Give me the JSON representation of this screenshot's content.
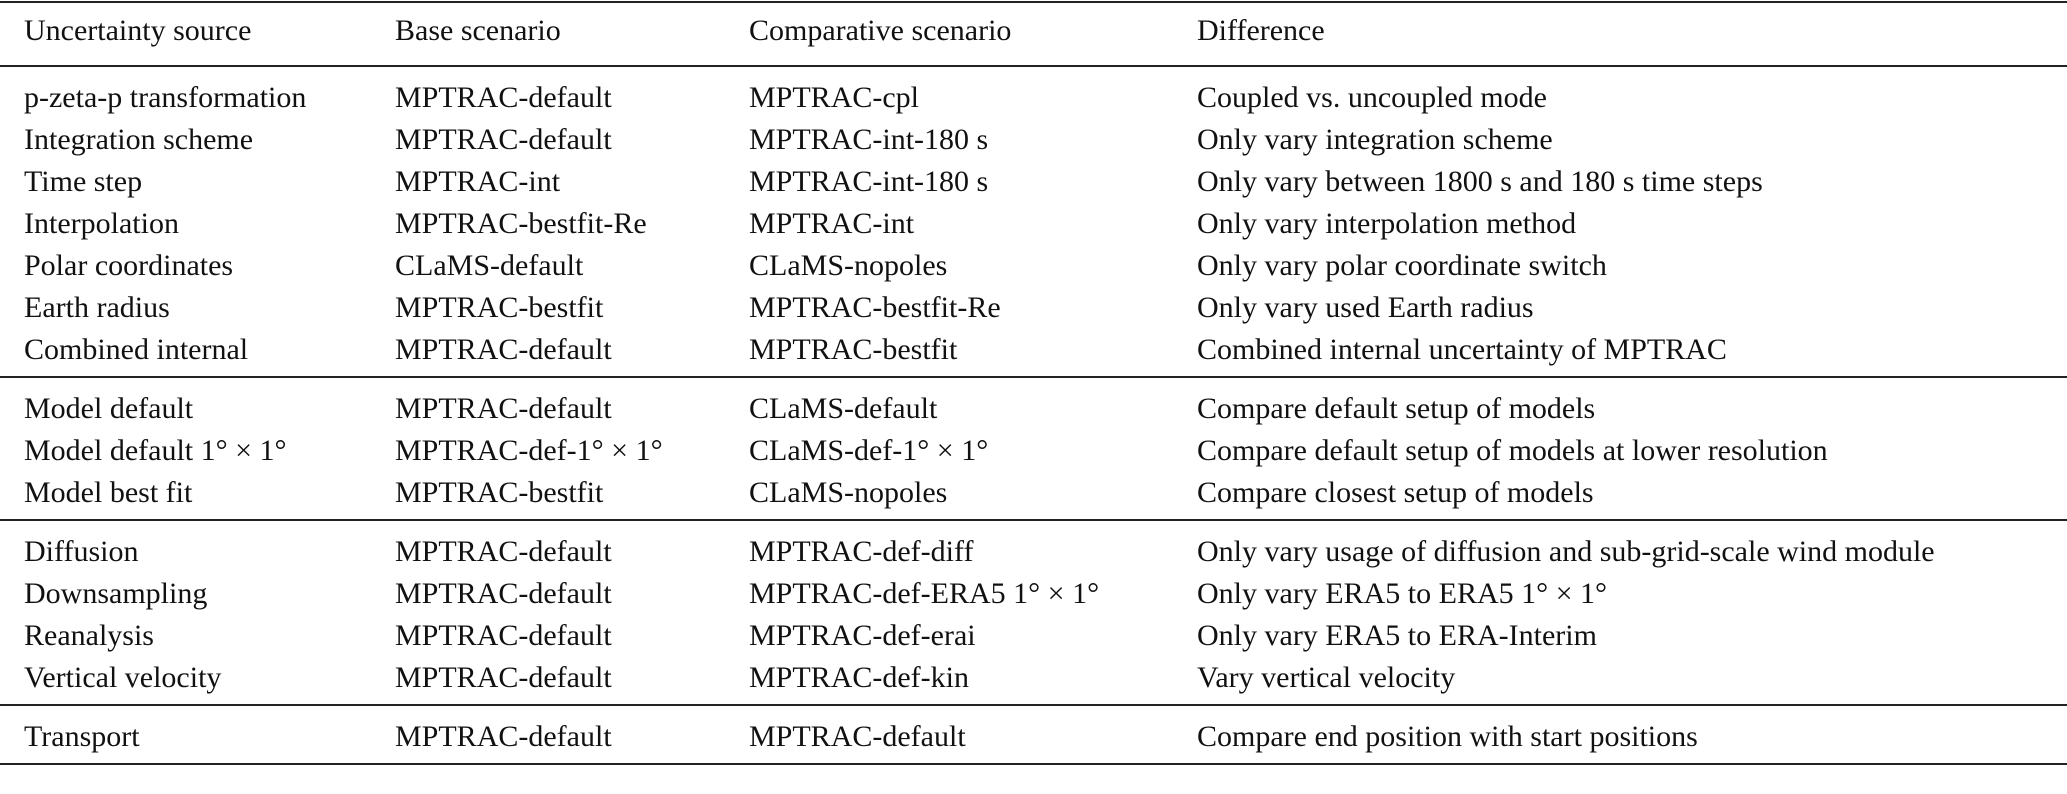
{
  "table": {
    "header": [
      "Uncertainty source",
      "Base scenario",
      "Comparative scenario",
      "Difference"
    ],
    "groups": [
      [
        [
          "p-zeta-p transformation",
          "MPTRAC-default",
          "MPTRAC-cpl",
          "Coupled vs. uncoupled mode"
        ],
        [
          "Integration scheme",
          "MPTRAC-default",
          "MPTRAC-int-180 s",
          "Only vary integration scheme"
        ],
        [
          "Time step",
          "MPTRAC-int",
          "MPTRAC-int-180 s",
          "Only vary between 1800 s and 180 s time steps"
        ],
        [
          "Interpolation",
          "MPTRAC-bestfit-Re",
          "MPTRAC-int",
          "Only vary interpolation method"
        ],
        [
          "Polar coordinates",
          "CLaMS-default",
          "CLaMS-nopoles",
          "Only vary polar coordinate switch"
        ],
        [
          "Earth radius",
          "MPTRAC-bestfit",
          "MPTRAC-bestfit-Re",
          "Only vary used Earth radius"
        ],
        [
          "Combined internal",
          "MPTRAC-default",
          "MPTRAC-bestfit",
          "Combined internal uncertainty of MPTRAC"
        ]
      ],
      [
        [
          "Model default",
          "MPTRAC-default",
          "CLaMS-default",
          "Compare default setup of models"
        ],
        [
          "Model default 1° × 1°",
          "MPTRAC-def-1° × 1°",
          "CLaMS-def-1° × 1°",
          "Compare default setup of models at lower resolution"
        ],
        [
          "Model best fit",
          "MPTRAC-bestfit",
          "CLaMS-nopoles",
          "Compare closest setup of models"
        ]
      ],
      [
        [
          "Diffusion",
          "MPTRAC-default",
          "MPTRAC-def-diff",
          "Only vary usage of diffusion and sub-grid-scale wind module"
        ],
        [
          "Downsampling",
          "MPTRAC-default",
          "MPTRAC-def-ERA5 1° × 1°",
          "Only vary ERA5 to ERA5 1° × 1°"
        ],
        [
          "Reanalysis",
          "MPTRAC-default",
          "MPTRAC-def-erai",
          "Only vary ERA5 to ERA-Interim"
        ],
        [
          "Vertical velocity",
          "MPTRAC-default",
          "MPTRAC-def-kin",
          "Vary vertical velocity"
        ]
      ],
      [
        [
          "Transport",
          "MPTRAC-default",
          "MPTRAC-default",
          "Compare end position with start positions"
        ]
      ]
    ]
  }
}
